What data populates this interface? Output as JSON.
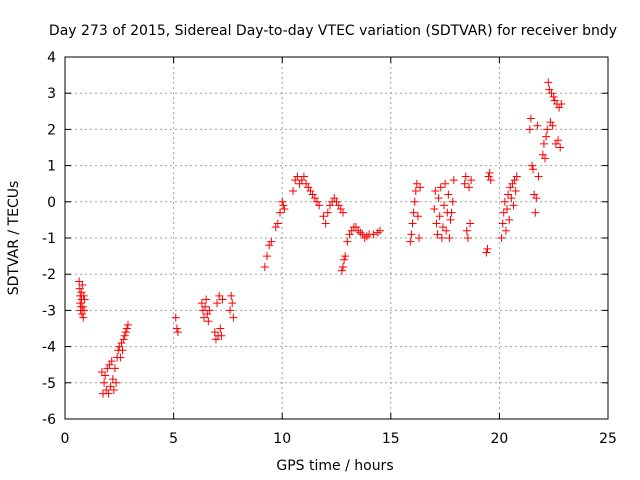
{
  "chart_data": {
    "type": "scatter",
    "title": "Day 273 of 2015, Sidereal Day-to-day VTEC variation (SDTVAR) for receiver bndy",
    "xlabel": "GPS time / hours",
    "ylabel": "SDTVAR / TECUs",
    "xlim": [
      0,
      25
    ],
    "ylim": [
      -6,
      4
    ],
    "xticks": [
      0,
      5,
      10,
      15,
      20,
      25
    ],
    "yticks": [
      -6,
      -5,
      -4,
      -3,
      -2,
      -1,
      0,
      1,
      2,
      3,
      4
    ],
    "xtick_labels": [
      "0",
      "5",
      "10",
      "15",
      "20",
      "25"
    ],
    "ytick_labels": [
      "-6",
      "-5",
      "-4",
      "-3",
      "-2",
      "-1",
      "0",
      "1",
      "2",
      "3",
      "4"
    ],
    "grid": true,
    "marker": "+",
    "color": "#ff0000",
    "series": [
      {
        "name": "SDTVAR",
        "points": [
          [
            0.65,
            -2.2
          ],
          [
            0.68,
            -2.4
          ],
          [
            0.7,
            -2.6
          ],
          [
            0.7,
            -2.8
          ],
          [
            0.72,
            -3.0
          ],
          [
            0.74,
            -2.9
          ],
          [
            0.75,
            -2.5
          ],
          [
            0.76,
            -2.7
          ],
          [
            0.78,
            -3.1
          ],
          [
            0.8,
            -2.3
          ],
          [
            0.82,
            -2.9
          ],
          [
            0.84,
            -3.2
          ],
          [
            0.86,
            -2.6
          ],
          [
            0.88,
            -3.0
          ],
          [
            0.9,
            -2.7
          ],
          [
            1.7,
            -4.7
          ],
          [
            1.75,
            -5.3
          ],
          [
            1.8,
            -5.0
          ],
          [
            1.85,
            -4.8
          ],
          [
            1.9,
            -5.2
          ],
          [
            1.95,
            -4.6
          ],
          [
            2.0,
            -5.3
          ],
          [
            2.05,
            -4.5
          ],
          [
            2.1,
            -5.1
          ],
          [
            2.15,
            -4.4
          ],
          [
            2.2,
            -4.9
          ],
          [
            2.25,
            -5.2
          ],
          [
            2.3,
            -4.6
          ],
          [
            2.35,
            -5.0
          ],
          [
            2.4,
            -4.3
          ],
          [
            2.45,
            -4.1
          ],
          [
            2.5,
            -4.0
          ],
          [
            2.55,
            -4.3
          ],
          [
            2.6,
            -3.9
          ],
          [
            2.65,
            -4.1
          ],
          [
            2.7,
            -3.8
          ],
          [
            2.75,
            -3.7
          ],
          [
            2.8,
            -3.6
          ],
          [
            2.85,
            -3.5
          ],
          [
            2.9,
            -3.4
          ],
          [
            5.1,
            -3.2
          ],
          [
            5.15,
            -3.5
          ],
          [
            5.2,
            -3.6
          ],
          [
            6.3,
            -2.8
          ],
          [
            6.35,
            -3.0
          ],
          [
            6.4,
            -3.2
          ],
          [
            6.45,
            -2.9
          ],
          [
            6.5,
            -2.7
          ],
          [
            6.55,
            -3.1
          ],
          [
            6.6,
            -3.3
          ],
          [
            6.65,
            -3.0
          ],
          [
            6.9,
            -3.6
          ],
          [
            6.95,
            -3.8
          ],
          [
            7.0,
            -2.8
          ],
          [
            7.05,
            -3.7
          ],
          [
            7.1,
            -2.6
          ],
          [
            7.15,
            -3.5
          ],
          [
            7.2,
            -3.7
          ],
          [
            7.25,
            -2.7
          ],
          [
            7.6,
            -3.0
          ],
          [
            7.65,
            -2.6
          ],
          [
            7.7,
            -2.8
          ],
          [
            7.75,
            -3.2
          ],
          [
            9.2,
            -1.8
          ],
          [
            9.3,
            -1.5
          ],
          [
            9.4,
            -1.2
          ],
          [
            9.5,
            -1.1
          ],
          [
            9.7,
            -0.7
          ],
          [
            9.8,
            -0.6
          ],
          [
            9.9,
            -0.3
          ],
          [
            10.0,
            0.0
          ],
          [
            10.05,
            -0.1
          ],
          [
            10.1,
            -0.2
          ],
          [
            10.5,
            0.3
          ],
          [
            10.6,
            0.6
          ],
          [
            10.7,
            0.7
          ],
          [
            10.8,
            0.5
          ],
          [
            10.9,
            0.6
          ],
          [
            11.0,
            0.7
          ],
          [
            11.1,
            0.5
          ],
          [
            11.2,
            0.4
          ],
          [
            11.3,
            0.3
          ],
          [
            11.4,
            0.2
          ],
          [
            11.5,
            0.1
          ],
          [
            11.6,
            0.0
          ],
          [
            11.7,
            -0.1
          ],
          [
            11.9,
            -0.4
          ],
          [
            12.0,
            -0.6
          ],
          [
            12.1,
            -0.3
          ],
          [
            12.2,
            -0.1
          ],
          [
            12.3,
            0.0
          ],
          [
            12.4,
            0.1
          ],
          [
            12.5,
            0.0
          ],
          [
            12.6,
            -0.1
          ],
          [
            12.7,
            -0.2
          ],
          [
            12.8,
            -0.3
          ],
          [
            12.75,
            -1.9
          ],
          [
            12.8,
            -1.8
          ],
          [
            12.85,
            -1.6
          ],
          [
            12.9,
            -1.5
          ],
          [
            13.0,
            -1.1
          ],
          [
            13.1,
            -0.9
          ],
          [
            13.2,
            -0.8
          ],
          [
            13.3,
            -0.7
          ],
          [
            13.4,
            -0.7
          ],
          [
            13.5,
            -0.8
          ],
          [
            13.6,
            -0.85
          ],
          [
            13.7,
            -0.9
          ],
          [
            13.8,
            -1.0
          ],
          [
            13.9,
            -0.95
          ],
          [
            14.0,
            -0.9
          ],
          [
            14.2,
            -0.9
          ],
          [
            14.4,
            -0.85
          ],
          [
            14.5,
            -0.8
          ],
          [
            15.9,
            -1.1
          ],
          [
            15.95,
            -0.9
          ],
          [
            16.0,
            -0.6
          ],
          [
            16.05,
            -0.3
          ],
          [
            16.1,
            0.0
          ],
          [
            16.15,
            0.3
          ],
          [
            16.2,
            0.5
          ],
          [
            16.25,
            -0.4
          ],
          [
            16.3,
            -1.0
          ],
          [
            16.35,
            0.4
          ],
          [
            17.0,
            -0.2
          ],
          [
            17.05,
            0.3
          ],
          [
            17.1,
            -0.6
          ],
          [
            17.15,
            -0.9
          ],
          [
            17.2,
            0.1
          ],
          [
            17.25,
            -0.4
          ],
          [
            17.3,
            0.4
          ],
          [
            17.35,
            -1.0
          ],
          [
            17.4,
            -0.7
          ],
          [
            17.45,
            -0.1
          ],
          [
            17.5,
            0.5
          ],
          [
            17.55,
            -0.8
          ],
          [
            17.6,
            -0.3
          ],
          [
            17.65,
            0.2
          ],
          [
            17.7,
            -1.0
          ],
          [
            17.75,
            -0.5
          ],
          [
            17.8,
            -0.3
          ],
          [
            17.85,
            0.0
          ],
          [
            17.9,
            0.6
          ],
          [
            18.4,
            0.5
          ],
          [
            18.45,
            0.7
          ],
          [
            18.5,
            -0.8
          ],
          [
            18.55,
            -1.0
          ],
          [
            18.6,
            0.4
          ],
          [
            18.65,
            -0.6
          ],
          [
            18.7,
            0.6
          ],
          [
            19.4,
            -1.4
          ],
          [
            19.45,
            -1.3
          ],
          [
            19.5,
            0.7
          ],
          [
            19.55,
            0.8
          ],
          [
            19.6,
            0.6
          ],
          [
            20.1,
            -1.0
          ],
          [
            20.15,
            -0.6
          ],
          [
            20.2,
            -0.3
          ],
          [
            20.25,
            0.0
          ],
          [
            20.3,
            -0.8
          ],
          [
            20.35,
            -0.2
          ],
          [
            20.4,
            0.2
          ],
          [
            20.45,
            -0.5
          ],
          [
            20.5,
            0.4
          ],
          [
            20.55,
            0.1
          ],
          [
            20.6,
            0.5
          ],
          [
            20.65,
            -0.1
          ],
          [
            20.7,
            0.6
          ],
          [
            20.75,
            0.3
          ],
          [
            20.8,
            0.7
          ],
          [
            21.4,
            2.0
          ],
          [
            21.45,
            2.3
          ],
          [
            21.5,
            1.0
          ],
          [
            21.55,
            0.9
          ],
          [
            21.6,
            0.2
          ],
          [
            21.65,
            -0.3
          ],
          [
            21.7,
            0.1
          ],
          [
            21.75,
            2.1
          ],
          [
            21.8,
            0.7
          ],
          [
            22.0,
            1.3
          ],
          [
            22.05,
            1.6
          ],
          [
            22.1,
            1.2
          ],
          [
            22.15,
            1.8
          ],
          [
            22.2,
            2.0
          ],
          [
            22.25,
            3.3
          ],
          [
            22.3,
            3.1
          ],
          [
            22.35,
            2.2
          ],
          [
            22.4,
            3.0
          ],
          [
            22.45,
            2.1
          ],
          [
            22.5,
            2.9
          ],
          [
            22.55,
            2.8
          ],
          [
            22.6,
            1.6
          ],
          [
            22.65,
            2.7
          ],
          [
            22.7,
            1.7
          ],
          [
            22.75,
            2.6
          ],
          [
            22.8,
            1.5
          ],
          [
            22.85,
            2.7
          ]
        ]
      }
    ]
  }
}
